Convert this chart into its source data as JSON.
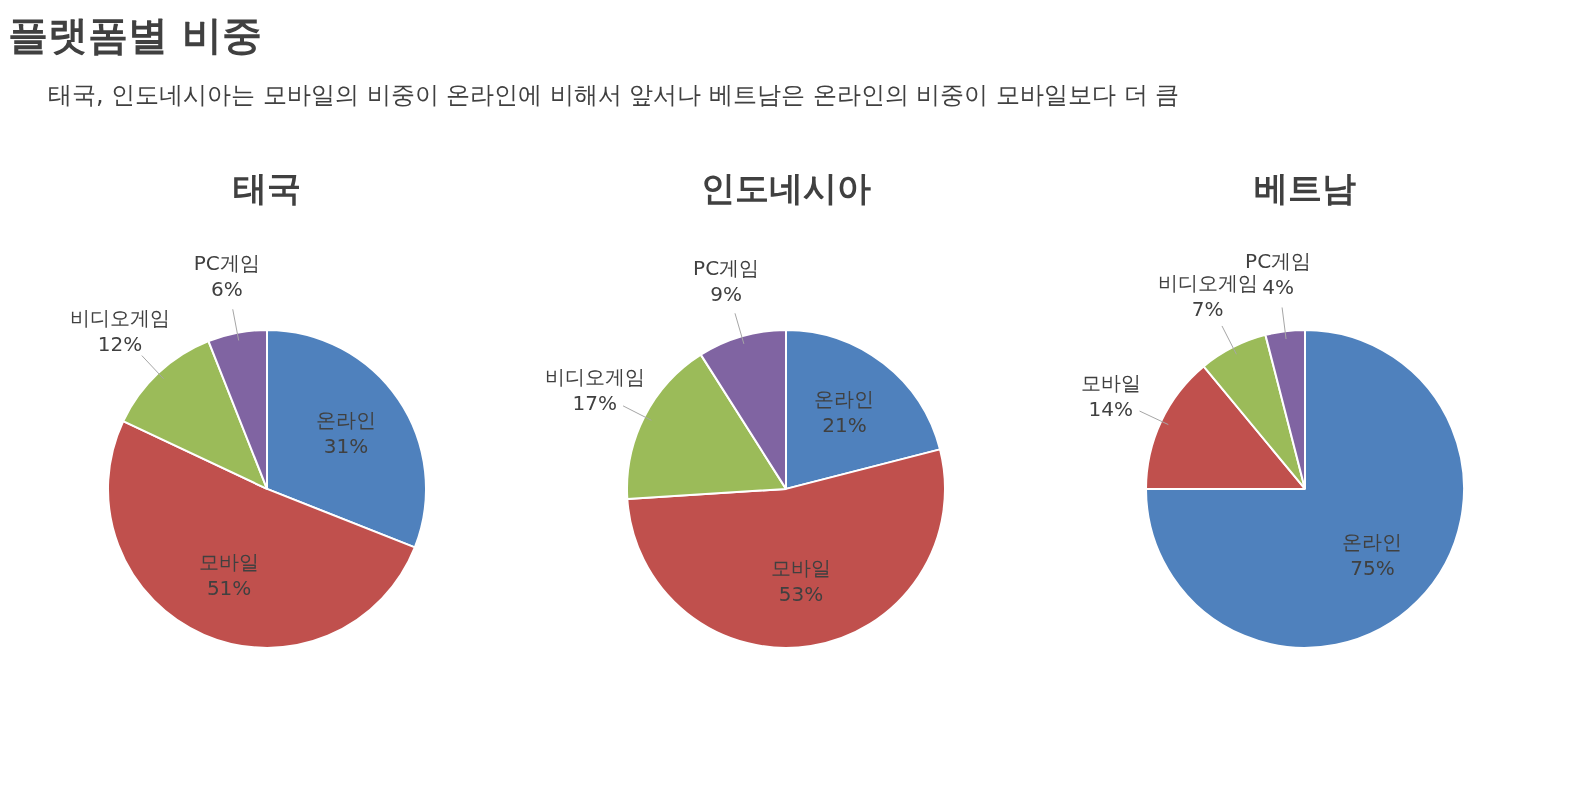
{
  "chart_data": [
    {
      "type": "other",
      "title": "플랫폼별 비중",
      "subtitle": "태국, 인도네시아는 모바일의 비중이 온라인에 비해서 앞서나 베트남은 온라인의 비중이 모바일보다 더 큼"
    },
    {
      "type": "pie",
      "title": "태국",
      "categories": [
        "온라인",
        "모바일",
        "비디오게임",
        "PC게임"
      ],
      "values": [
        31,
        51,
        12,
        6
      ],
      "value_labels": [
        "31%",
        "51%",
        "12%",
        "6%"
      ],
      "colors": [
        "#4f81bd",
        "#c0504d",
        "#9bbb59",
        "#8064a2"
      ]
    },
    {
      "type": "pie",
      "title": "인도네시아",
      "categories": [
        "온라인",
        "모바일",
        "비디오게임",
        "PC게임"
      ],
      "values": [
        21,
        53,
        17,
        9
      ],
      "value_labels": [
        "21%",
        "53%",
        "17%",
        "9%"
      ],
      "colors": [
        "#4f81bd",
        "#c0504d",
        "#9bbb59",
        "#8064a2"
      ]
    },
    {
      "type": "pie",
      "title": "베트남",
      "categories": [
        "온라인",
        "모바일",
        "비디오게임",
        "PC게임"
      ],
      "values": [
        75,
        14,
        7,
        4
      ],
      "value_labels": [
        "75%",
        "14%",
        "7%",
        "4%"
      ],
      "colors": [
        "#4f81bd",
        "#c0504d",
        "#9bbb59",
        "#8064a2"
      ]
    }
  ]
}
